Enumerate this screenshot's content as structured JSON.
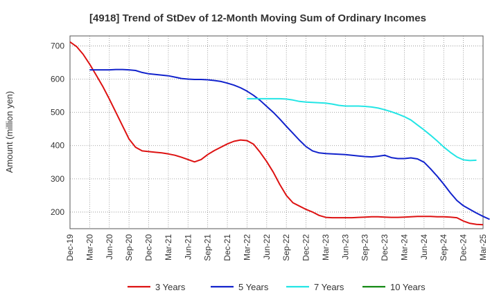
{
  "chart_data": {
    "type": "line",
    "title": "[4918]  Trend of StDev of 12-Month Moving Sum of Ordinary Incomes",
    "ylabel": "Amount (million yen)",
    "xlabel": "",
    "x_ticks": [
      "Dec-19",
      "Mar-20",
      "Jun-20",
      "Sep-20",
      "Dec-20",
      "Mar-21",
      "Jun-21",
      "Sep-21",
      "Dec-21",
      "Mar-22",
      "Jun-22",
      "Sep-22",
      "Dec-22",
      "Mar-23",
      "Jun-23",
      "Sep-23",
      "Dec-23",
      "Mar-24",
      "Jun-24",
      "Sep-24",
      "Dec-24",
      "Mar-25"
    ],
    "y_ticks": [
      200,
      300,
      400,
      500,
      600,
      700
    ],
    "ylim": [
      150,
      730
    ],
    "xlim_months": [
      0,
      63
    ],
    "grid": true,
    "legend_position": "bottom",
    "series": [
      {
        "name": "3 Years",
        "color": "#dd1111",
        "start_month": 0,
        "values": [
          712,
          698,
          675,
          645,
          612,
          578,
          540,
          500,
          460,
          420,
          395,
          384,
          382,
          380,
          378,
          375,
          371,
          365,
          358,
          351,
          358,
          373,
          385,
          395,
          405,
          413,
          417,
          415,
          404,
          380,
          352,
          320,
          283,
          250,
          228,
          218,
          208,
          200,
          190,
          184,
          183,
          183,
          183,
          183,
          184,
          185,
          186,
          186,
          185,
          184,
          184,
          185,
          186,
          187,
          187,
          187,
          186,
          186,
          185,
          183,
          173,
          166,
          163,
          162
        ]
      },
      {
        "name": "5 Years",
        "color": "#1122cc",
        "start_month": 3,
        "values": [
          628,
          628,
          628,
          628,
          629,
          629,
          628,
          626,
          620,
          616,
          614,
          612,
          610,
          606,
          602,
          600,
          599,
          599,
          598,
          596,
          593,
          588,
          582,
          574,
          564,
          551,
          536,
          518,
          500,
          480,
          458,
          437,
          416,
          397,
          384,
          378,
          376,
          375,
          374,
          373,
          371,
          369,
          367,
          366,
          368,
          371,
          364,
          361,
          361,
          363,
          360,
          350,
          330,
          308,
          284,
          258,
          235,
          219,
          208,
          197,
          187,
          178
        ]
      },
      {
        "name": "7 Years",
        "color": "#22e5e5",
        "start_month": 27,
        "values": [
          541,
          541,
          541,
          541,
          541,
          541,
          540,
          537,
          533,
          531,
          530,
          529,
          528,
          525,
          521,
          519,
          519,
          519,
          518,
          516,
          513,
          508,
          502,
          495,
          487,
          477,
          462,
          447,
          431,
          414,
          396,
          380,
          366,
          357,
          355,
          356
        ]
      },
      {
        "name": "10 Years",
        "color": "#118811",
        "start_month": 0,
        "values": []
      }
    ]
  }
}
